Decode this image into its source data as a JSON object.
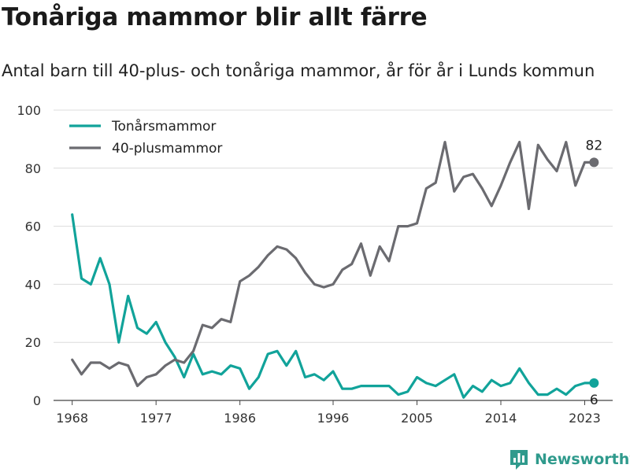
{
  "header": {
    "title": "Tonåriga mammor blir allt färre",
    "subtitle": "Antal barn till 40-plus- och tonåriga mammor, år för år i Lunds kommun"
  },
  "brand": {
    "name": "Newsworthy",
    "icon": "bar-chart-logo-icon",
    "color": "#2f9a8c"
  },
  "chart_data": {
    "type": "line",
    "xlim": [
      1966,
      2026
    ],
    "ylim": [
      0,
      100
    ],
    "yticks": [
      0,
      20,
      40,
      60,
      80,
      100
    ],
    "xticks": [
      1968,
      1977,
      1986,
      1996,
      2005,
      2014,
      2023
    ],
    "grid": "horizontal",
    "legend_position": "top-left",
    "x": [
      1968,
      1969,
      1970,
      1971,
      1972,
      1973,
      1974,
      1975,
      1976,
      1977,
      1978,
      1979,
      1980,
      1981,
      1982,
      1983,
      1984,
      1985,
      1986,
      1987,
      1988,
      1989,
      1990,
      1991,
      1992,
      1993,
      1994,
      1995,
      1996,
      1997,
      1998,
      1999,
      2000,
      2001,
      2002,
      2003,
      2004,
      2005,
      2006,
      2007,
      2008,
      2009,
      2010,
      2011,
      2012,
      2013,
      2014,
      2015,
      2016,
      2017,
      2018,
      2019,
      2020,
      2021,
      2022,
      2023,
      2024
    ],
    "series": [
      {
        "name": "Tonårsmammor",
        "color": "#11a39a",
        "end_label": "6",
        "values": [
          64,
          42,
          40,
          49,
          40,
          20,
          36,
          25,
          23,
          27,
          20,
          15,
          8,
          16,
          9,
          10,
          9,
          12,
          11,
          4,
          8,
          16,
          17,
          12,
          17,
          8,
          9,
          7,
          10,
          4,
          4,
          5,
          5,
          5,
          5,
          2,
          3,
          8,
          6,
          5,
          7,
          9,
          1,
          5,
          3,
          7,
          5,
          6,
          11,
          6,
          2,
          2,
          4,
          2,
          5,
          6,
          6
        ]
      },
      {
        "name": "40-plusmammor",
        "color": "#6b6b70",
        "end_label": "82",
        "values": [
          14,
          9,
          13,
          13,
          11,
          13,
          12,
          5,
          8,
          9,
          12,
          14,
          13,
          17,
          26,
          25,
          28,
          27,
          41,
          43,
          46,
          50,
          53,
          52,
          49,
          44,
          40,
          39,
          40,
          45,
          47,
          54,
          43,
          53,
          48,
          60,
          60,
          61,
          73,
          75,
          89,
          72,
          77,
          78,
          73,
          67,
          74,
          82,
          89,
          66,
          88,
          83,
          79,
          89,
          74,
          82,
          82
        ]
      }
    ]
  }
}
